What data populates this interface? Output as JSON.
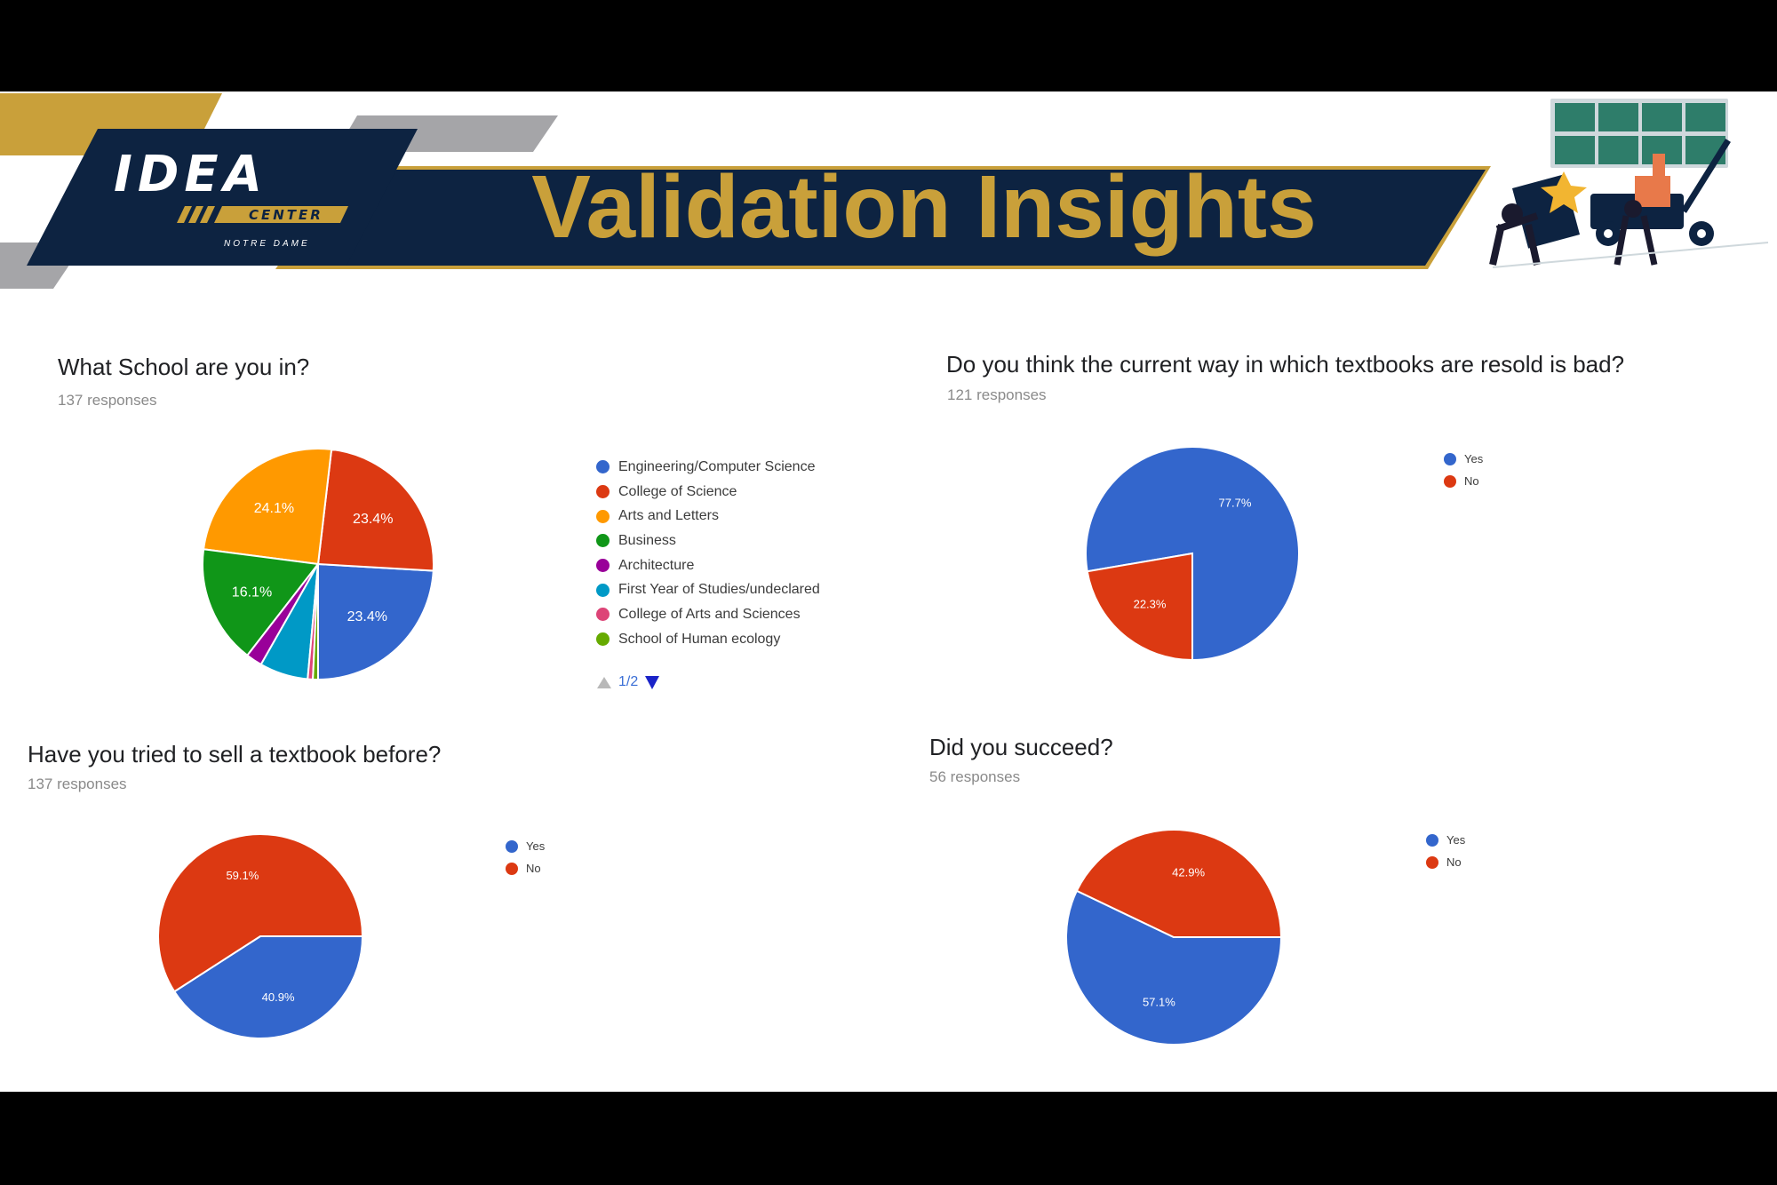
{
  "logo": {
    "title": "IDEA",
    "subtitle": "CENTER",
    "tagline": "NOTRE DAME"
  },
  "banner": {
    "title": "Validation Insights"
  },
  "colors": {
    "navy": "#0D2341",
    "gold": "#C9A03A",
    "gray": "#A5A5A8",
    "blue": "#3366CC",
    "red": "#DC3912"
  },
  "illustration": {
    "icon": "workers-with-cart-illustration"
  },
  "chart_data": [
    {
      "type": "pie",
      "title": "What School are you in?",
      "subtitle": "137 responses",
      "categories": [
        "Engineering/Computer Science",
        "College of Science",
        "Arts and Letters",
        "Business",
        "Architecture",
        "First Year of Studies/undeclared",
        "College of Arts and Sciences",
        "School of Human ecology"
      ],
      "values": [
        23.4,
        23.4,
        24.1,
        16.1,
        2.2,
        6.6,
        0.7,
        0.7
      ],
      "slice_labels": [
        "23.4%",
        "23.4%",
        "24.1%",
        "16.1%",
        "",
        "",
        "",
        ""
      ],
      "colors": [
        "#3366CC",
        "#DC3912",
        "#FF9900",
        "#109618",
        "#990099",
        "#0099C6",
        "#DD4477",
        "#66AA00"
      ],
      "legend": "right",
      "pager": "1/2"
    },
    {
      "type": "pie",
      "title": "Do you think the current way in which textbooks are resold is bad?",
      "subtitle": "121 responses",
      "categories": [
        "Yes",
        "No"
      ],
      "values": [
        77.7,
        22.3
      ],
      "slice_labels": [
        "77.7%",
        "22.3%"
      ],
      "colors": [
        "#3366CC",
        "#DC3912"
      ],
      "legend": "right"
    },
    {
      "type": "pie",
      "title": "Have you tried to sell a textbook before?",
      "subtitle": "137 responses",
      "categories": [
        "Yes",
        "No"
      ],
      "values": [
        40.9,
        59.1
      ],
      "slice_labels": [
        "40.9%",
        "59.1%"
      ],
      "colors": [
        "#3366CC",
        "#DC3912"
      ],
      "legend": "right"
    },
    {
      "type": "pie",
      "title": "Did you succeed?",
      "subtitle": "56 responses",
      "categories": [
        "Yes",
        "No"
      ],
      "values": [
        57.1,
        42.9
      ],
      "slice_labels": [
        "57.1%",
        "42.9%"
      ],
      "colors": [
        "#3366CC",
        "#DC3912"
      ],
      "legend": "right"
    }
  ]
}
